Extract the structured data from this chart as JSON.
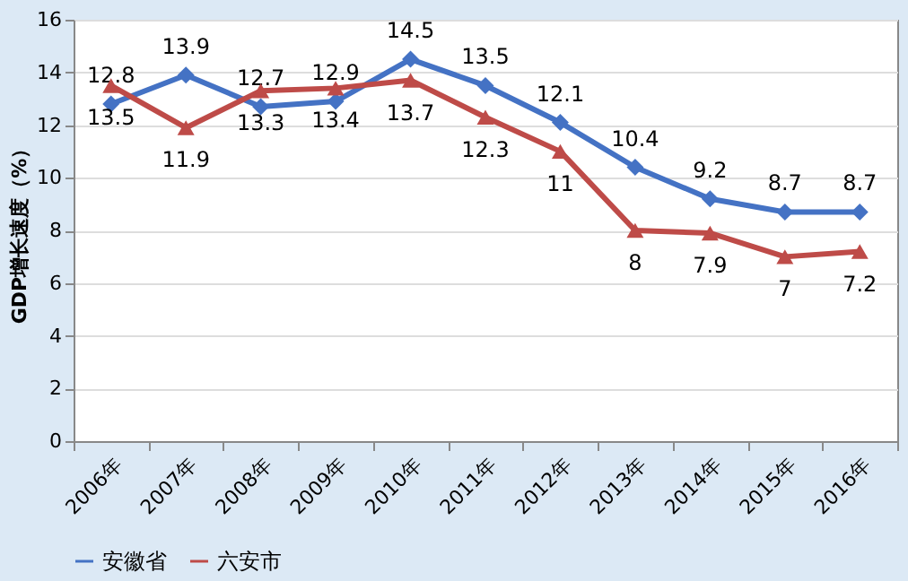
{
  "chart_data": {
    "type": "line",
    "ylabel": "GDP增长速度（%）",
    "categories": [
      "2006年",
      "2007年",
      "2008年",
      "2009年",
      "2010年",
      "2011年",
      "2012年",
      "2013年",
      "2014年",
      "2015年",
      "2016年"
    ],
    "series": [
      {
        "name": "安徽省",
        "color": "#4472c4",
        "marker": "diamond",
        "values": [
          12.8,
          13.9,
          12.7,
          12.9,
          14.5,
          13.5,
          12.1,
          10.4,
          9.2,
          8.7,
          8.7
        ]
      },
      {
        "name": "六安市",
        "color": "#be4b48",
        "marker": "triangle",
        "values": [
          13.5,
          11.9,
          13.3,
          13.4,
          13.7,
          12.3,
          11,
          8,
          7.9,
          7,
          7.2
        ]
      }
    ],
    "ylim": [
      0,
      16
    ],
    "yticks": [
      0,
      2,
      4,
      6,
      8,
      10,
      12,
      14,
      16
    ],
    "grid": "y",
    "legend": "bottom",
    "data_labels": true
  }
}
